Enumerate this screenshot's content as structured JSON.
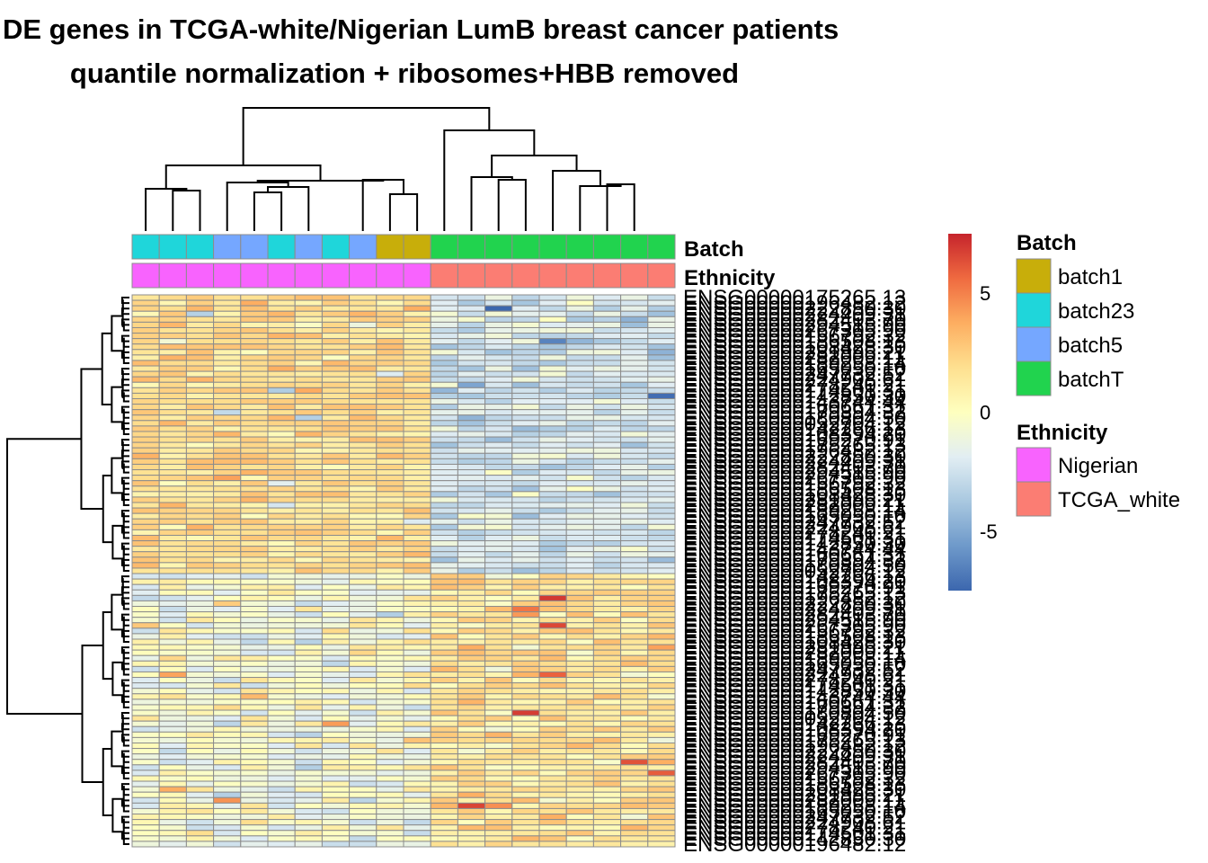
{
  "title": {
    "line1": "k: DE genes in TCGA-white/Nigerian LumB breast cancer patients",
    "line2": "quantile normalization + ribosomes+HBB removed"
  },
  "chart_data": {
    "type": "heatmap",
    "n_samples": 20,
    "n_genes": 101,
    "annotation_labels": {
      "batch": "Batch",
      "ethnicity": "Ethnicity"
    },
    "sample_batch": [
      "batch23",
      "batch23",
      "batch23",
      "batch5",
      "batch5",
      "batch23",
      "batch5",
      "batch23",
      "batch5",
      "batch1",
      "batch1",
      "batchT",
      "batchT",
      "batchT",
      "batchT",
      "batchT",
      "batchT",
      "batchT",
      "batchT",
      "batchT"
    ],
    "sample_ethnicity": [
      "Nigerian",
      "Nigerian",
      "Nigerian",
      "Nigerian",
      "Nigerian",
      "Nigerian",
      "Nigerian",
      "Nigerian",
      "Nigerian",
      "Nigerian",
      "Nigerian",
      "TCGA_white",
      "TCGA_white",
      "TCGA_white",
      "TCGA_white",
      "TCGA_white",
      "TCGA_white",
      "TCGA_white",
      "TCGA_white",
      "TCGA_white"
    ],
    "gene_cluster_split": 51,
    "visible_row_labels": [
      "ENSG00000175265.13",
      "ENSG00000196482.12",
      "ENSG00000222850.30",
      "ENSG00000224409.31",
      "ENSG00000282403.70",
      "ENSG00000294515.90",
      "ENSG00000267305.90",
      "ENSG00000156792.32",
      "ENSG00000186508.13",
      "ENSG00000108428.30",
      "ENSG00000281995.21",
      "ENSG00000282009.11",
      "ENSG00000189258.14",
      "ENSG00000165050.10",
      "ENSG00000247732.52",
      "ENSG00000224908.61",
      "ENSG00000278240.21",
      "ENSG00000174501.31",
      "ENSG00000142850.30",
      "ENSG00000143744.44",
      "ENSG00000160661.31",
      "ENSG00000179394.32",
      "ENSG00000180804.50",
      "ENSG00000052704.12",
      "ENSG00000142266.13",
      "ENSG00000108394.20",
      "ENSG00000169270.91"
    ],
    "color_scale": {
      "min": -7.5,
      "max": 7.5,
      "stops": [
        "#3C67AE",
        "#6E99CA",
        "#A9C8E0",
        "#E2EEF3",
        "#FEFFBF",
        "#FEE090",
        "#FDAE61",
        "#EF6A40",
        "#C6242C"
      ],
      "ticks": [
        {
          "value": 5,
          "label": "5"
        },
        {
          "value": 0,
          "label": "0"
        },
        {
          "value": -5,
          "label": "-5"
        }
      ]
    },
    "legend": {
      "batch_title": "Batch",
      "batch_items": [
        {
          "name": "batch1",
          "color": "#C8AE0A"
        },
        {
          "name": "batch23",
          "color": "#1FD6DA"
        },
        {
          "name": "batch5",
          "color": "#75A7FF"
        },
        {
          "name": "batchT",
          "color": "#21D34E"
        }
      ],
      "ethnicity_title": "Ethnicity",
      "ethnicity_items": [
        {
          "name": "Nigerian",
          "color": "#F863FE"
        },
        {
          "name": "TCGA_white",
          "color": "#FB7D73"
        }
      ]
    }
  }
}
